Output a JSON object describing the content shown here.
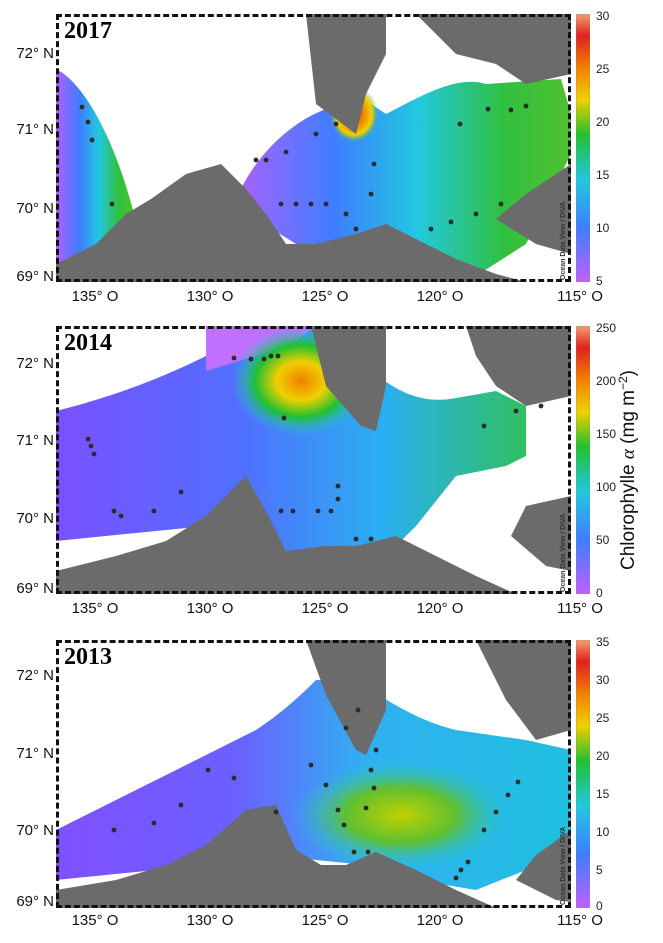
{
  "colorbar_title": {
    "prefix": "Chlorophylle ",
    "symbol": "α",
    "unit": " (mg m",
    "exp": "−2",
    "close": ")"
  },
  "watermark": "Ocean Data View / DIVA",
  "colors": {
    "land": "#6b6b6b",
    "stations": "#2b2b2b",
    "scale": [
      "#c060ff",
      "#3f7dff",
      "#22c8e0",
      "#22c030",
      "#f0d000",
      "#f08000",
      "#e02020",
      "#f0a070"
    ]
  },
  "panels": [
    {
      "year": "2017",
      "lat_labels": [
        "72° N",
        "71° N",
        "70° N",
        "69° N"
      ],
      "lon_labels": [
        "135° O",
        "130° O",
        "125° O",
        "120° O",
        "115° O"
      ],
      "colorbar": {
        "min": 5,
        "max": 30,
        "ticks": [
          "30",
          "25",
          "20",
          "15",
          "10",
          "5"
        ]
      }
    },
    {
      "year": "2014",
      "lat_labels": [
        "72° N",
        "71° N",
        "70° N",
        "69° N"
      ],
      "lon_labels": [
        "135° O",
        "130° O",
        "125° O",
        "120° O",
        "115° O"
      ],
      "colorbar": {
        "min": 0,
        "max": 250,
        "ticks": [
          "250",
          "200",
          "150",
          "100",
          "50",
          "0"
        ]
      }
    },
    {
      "year": "2013",
      "lat_labels": [
        "72° N",
        "71° N",
        "70° N",
        "69° N"
      ],
      "lon_labels": [
        "135° O",
        "130° O",
        "125° O",
        "120° O",
        "115° O"
      ],
      "colorbar": {
        "min": 0,
        "max": 35,
        "ticks": [
          "35",
          "30",
          "25",
          "20",
          "15",
          "10",
          "5",
          "0"
        ]
      }
    }
  ]
}
